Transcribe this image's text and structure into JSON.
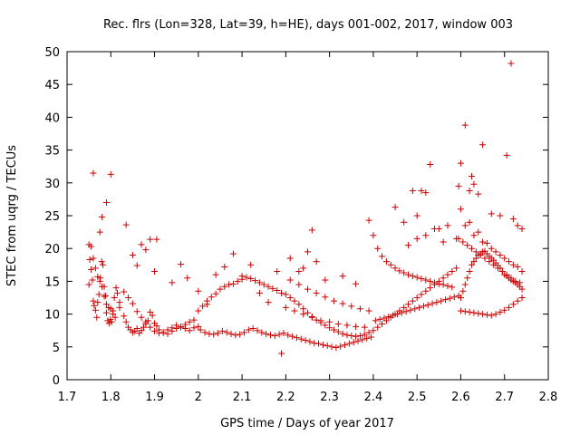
{
  "chart_data": {
    "type": "scatter",
    "title": "Rec. flrs (Lon=328, Lat=39, h=HE), days 001-002, 2017, window 003",
    "xlabel": "GPS time / Days of year 2017",
    "ylabel": "STEC from uqrg / TECUs",
    "xlim": [
      1.7,
      2.8
    ],
    "ylim": [
      0,
      50
    ],
    "xticks": [
      "1.7",
      "1.8",
      "1.9",
      "2",
      "2.1",
      "2.2",
      "2.3",
      "2.4",
      "2.5",
      "2.6",
      "2.7",
      "2.8"
    ],
    "yticks": [
      "0",
      "5",
      "10",
      "15",
      "20",
      "25",
      "30",
      "35",
      "40",
      "45",
      "50"
    ],
    "grid": false,
    "legend": "none",
    "marker": "plus",
    "color": "#cc0000",
    "series": [
      {
        "x": [
          1.75,
          1.752,
          1.755,
          1.758,
          1.76,
          1.762,
          1.765,
          1.768,
          1.77,
          1.773,
          1.776,
          1.779,
          1.782,
          1.785,
          1.788,
          1.79,
          1.793,
          1.796,
          1.799,
          1.802,
          1.805,
          1.808,
          1.812,
          1.815,
          1.82,
          1.83,
          1.835,
          1.84,
          1.845,
          1.85,
          1.855,
          1.86,
          1.865,
          1.87,
          1.875,
          1.88,
          1.885,
          1.89,
          1.895,
          1.9,
          1.905,
          1.91,
          1.92,
          1.93,
          1.94,
          1.95,
          1.96,
          1.97,
          1.98,
          1.99,
          1.75,
          1.755,
          1.76,
          1.765,
          1.77,
          1.775,
          1.78,
          1.785,
          1.79,
          1.795,
          1.8,
          1.805,
          1.81,
          1.82,
          1.83,
          1.84,
          1.85,
          1.86,
          1.87,
          1.88,
          1.89,
          1.9,
          1.91,
          1.92,
          1.93,
          1.94,
          1.95,
          1.96,
          1.97,
          1.98,
          1.99,
          2.0,
          1.76,
          1.8,
          1.78,
          1.79,
          1.775,
          1.85,
          1.87,
          1.89,
          1.905,
          1.835,
          1.86,
          1.88,
          1.9,
          1.96,
          1.94,
          1.975,
          2.0,
          2.01,
          2.02,
          2.03,
          2.04,
          2.05,
          2.06,
          2.07,
          2.08,
          2.09,
          2.1,
          2.11,
          2.12,
          2.13,
          2.14,
          2.15,
          2.16,
          2.17,
          2.18,
          2.19,
          2.005,
          2.015,
          2.025,
          2.035,
          2.045,
          2.055,
          2.065,
          2.075,
          2.085,
          2.095,
          2.105,
          2.115,
          2.125,
          2.135,
          2.145,
          2.155,
          2.165,
          2.175,
          2.185,
          2.195,
          2.0,
          2.02,
          2.04,
          2.06,
          2.08,
          2.1,
          2.12,
          2.14,
          2.16,
          2.18,
          2.2,
          2.21,
          2.22,
          2.23,
          2.24,
          2.25,
          2.26,
          2.27,
          2.28,
          2.29,
          2.3,
          2.31,
          2.32,
          2.33,
          2.34,
          2.35,
          2.36,
          2.37,
          2.38,
          2.39,
          2.205,
          2.215,
          2.225,
          2.235,
          2.245,
          2.255,
          2.265,
          2.275,
          2.285,
          2.295,
          2.305,
          2.315,
          2.325,
          2.335,
          2.345,
          2.355,
          2.365,
          2.375,
          2.385,
          2.395,
          2.2,
          2.22,
          2.24,
          2.26,
          2.28,
          2.3,
          2.32,
          2.34,
          2.36,
          2.38,
          2.21,
          2.23,
          2.25,
          2.27,
          2.29,
          2.31,
          2.33,
          2.35,
          2.37,
          2.39,
          2.19,
          2.23,
          2.26,
          2.21,
          2.25,
          2.29,
          2.33,
          2.36,
          2.24,
          2.27,
          2.4,
          2.41,
          2.42,
          2.43,
          2.44,
          2.45,
          2.46,
          2.47,
          2.48,
          2.49,
          2.5,
          2.51,
          2.52,
          2.53,
          2.54,
          2.55,
          2.56,
          2.57,
          2.58,
          2.59,
          2.405,
          2.415,
          2.425,
          2.435,
          2.445,
          2.455,
          2.465,
          2.475,
          2.485,
          2.495,
          2.505,
          2.515,
          2.525,
          2.535,
          2.545,
          2.555,
          2.565,
          2.575,
          2.585,
          2.595,
          2.39,
          2.4,
          2.41,
          2.42,
          2.43,
          2.44,
          2.45,
          2.46,
          2.47,
          2.48,
          2.49,
          2.5,
          2.51,
          2.52,
          2.53,
          2.54,
          2.55,
          2.56,
          2.57,
          2.58,
          2.45,
          2.47,
          2.49,
          2.5,
          2.51,
          2.52,
          2.53,
          2.55,
          2.57,
          2.59,
          2.48,
          2.5,
          2.52,
          2.54,
          2.56,
          2.6,
          2.605,
          2.61,
          2.615,
          2.62,
          2.625,
          2.63,
          2.635,
          2.64,
          2.645,
          2.65,
          2.655,
          2.66,
          2.665,
          2.67,
          2.675,
          2.68,
          2.685,
          2.69,
          2.695,
          2.7,
          2.705,
          2.71,
          2.715,
          2.72,
          2.725,
          2.73,
          2.735,
          2.74,
          2.6,
          2.61,
          2.62,
          2.63,
          2.64,
          2.65,
          2.66,
          2.67,
          2.68,
          2.69,
          2.7,
          2.71,
          2.72,
          2.73,
          2.74,
          2.595,
          2.605,
          2.615,
          2.625,
          2.635,
          2.645,
          2.655,
          2.665,
          2.675,
          2.685,
          2.695,
          2.705,
          2.715,
          2.725,
          2.735,
          2.6,
          2.62,
          2.64,
          2.66,
          2.68,
          2.7,
          2.72,
          2.74,
          2.61,
          2.63,
          2.65,
          2.67,
          2.69,
          2.71,
          2.73,
          2.595,
          2.61,
          2.625,
          2.64,
          2.65,
          2.705,
          2.715,
          2.74,
          2.6,
          2.62,
          2.63,
          2.67,
          2.69,
          2.72,
          2.73
        ],
        "y": [
          14.5,
          18.3,
          16.8,
          15.2,
          12.0,
          11.3,
          10.6,
          9.5,
          11.8,
          13.0,
          15.5,
          18.0,
          17.5,
          14.2,
          12.8,
          10.2,
          9.0,
          8.6,
          9.2,
          8.8,
          10.5,
          12.5,
          14.0,
          13.2,
          11.0,
          9.7,
          8.8,
          8.0,
          7.6,
          7.2,
          7.4,
          7.8,
          7.1,
          7.5,
          8.0,
          8.5,
          9.0,
          10.3,
          9.8,
          8.6,
          8.2,
          7.6,
          7.2,
          7.0,
          7.4,
          7.8,
          8.1,
          8.4,
          8.8,
          9.1,
          20.6,
          20.3,
          18.5,
          17.0,
          15.7,
          15.0,
          14.2,
          12.7,
          11.5,
          11.0,
          10.8,
          10.0,
          9.5,
          11.8,
          13.4,
          12.5,
          11.6,
          10.4,
          9.5,
          8.8,
          8.0,
          7.4,
          7.1,
          7.2,
          7.6,
          7.9,
          8.3,
          8.0,
          7.8,
          7.5,
          7.9,
          8.1,
          31.5,
          31.3,
          24.8,
          27.0,
          22.5,
          19.0,
          20.6,
          21.4,
          21.4,
          23.6,
          17.4,
          19.8,
          16.5,
          17.6,
          14.8,
          15.5,
          10.5,
          11.2,
          12.0,
          12.6,
          13.1,
          13.8,
          14.2,
          14.5,
          14.6,
          15.0,
          15.3,
          15.6,
          15.4,
          15.1,
          14.8,
          14.5,
          14.2,
          13.9,
          13.6,
          13.2,
          7.6,
          7.2,
          7.0,
          6.9,
          7.1,
          7.4,
          7.2,
          7.0,
          6.8,
          6.9,
          7.2,
          7.6,
          7.8,
          7.5,
          7.2,
          7.0,
          6.8,
          6.7,
          6.9,
          7.1,
          13.5,
          11.5,
          16.0,
          17.2,
          19.2,
          15.8,
          17.5,
          13.2,
          11.8,
          16.5,
          13.0,
          12.5,
          12.0,
          11.5,
          10.8,
          10.2,
          9.6,
          9.1,
          8.7,
          8.3,
          7.9,
          7.6,
          7.3,
          7.0,
          6.8,
          6.7,
          6.6,
          6.7,
          6.9,
          7.2,
          6.8,
          6.6,
          6.4,
          6.2,
          6.0,
          5.8,
          5.6,
          5.5,
          5.3,
          5.2,
          5.0,
          4.9,
          5.1,
          5.3,
          5.5,
          5.7,
          5.9,
          6.1,
          6.3,
          6.5,
          11.0,
          10.5,
          10.0,
          9.5,
          9.0,
          8.8,
          8.5,
          8.3,
          8.1,
          8.0,
          15.2,
          14.5,
          13.8,
          13.2,
          12.6,
          12.0,
          11.6,
          11.2,
          10.8,
          10.5,
          4.0,
          16.5,
          22.8,
          18.5,
          19.5,
          15.2,
          15.8,
          14.6,
          17.0,
          18.0,
          7.5,
          8.0,
          8.5,
          9.0,
          9.5,
          10.0,
          10.5,
          11.0,
          11.5,
          12.0,
          12.5,
          13.0,
          13.5,
          14.0,
          14.5,
          15.0,
          15.5,
          16.0,
          16.5,
          17.0,
          9.0,
          9.2,
          9.4,
          9.6,
          9.8,
          10.0,
          10.2,
          10.4,
          10.6,
          10.8,
          11.0,
          11.2,
          11.4,
          11.6,
          11.8,
          12.0,
          12.2,
          12.4,
          12.6,
          12.8,
          24.3,
          22.0,
          20.0,
          18.8,
          18.0,
          17.5,
          17.0,
          16.6,
          16.3,
          16.0,
          15.8,
          15.6,
          15.4,
          15.2,
          15.0,
          14.8,
          14.6,
          14.5,
          14.3,
          14.1,
          26.3,
          24.0,
          28.8,
          25.0,
          28.8,
          28.5,
          32.8,
          23.0,
          23.5,
          21.5,
          20.5,
          21.5,
          22.0,
          23.0,
          21.0,
          12.5,
          13.5,
          14.5,
          15.5,
          16.5,
          17.5,
          18.0,
          18.5,
          19.0,
          19.2,
          19.5,
          19.6,
          19.2,
          18.8,
          18.5,
          18.2,
          17.8,
          17.4,
          17.0,
          16.5,
          16.0,
          15.8,
          15.5,
          15.2,
          15.0,
          14.8,
          14.5,
          14.2,
          13.8,
          10.5,
          10.4,
          10.3,
          10.2,
          10.1,
          10.0,
          9.9,
          9.8,
          10.0,
          10.3,
          10.6,
          11.0,
          11.5,
          12.0,
          12.5,
          21.5,
          21.0,
          20.5,
          20.0,
          19.5,
          19.0,
          18.5,
          18.0,
          17.5,
          17.0,
          16.5,
          16.0,
          15.5,
          15.0,
          14.8,
          26.0,
          24.0,
          22.5,
          20.8,
          19.5,
          18.5,
          17.5,
          16.5,
          23.5,
          22.0,
          21.0,
          20.0,
          19.0,
          18.0,
          17.2,
          29.5,
          38.8,
          31.0,
          28.3,
          35.8,
          34.2,
          48.2,
          23.0,
          33.0,
          28.8,
          29.8,
          25.3,
          25.0,
          24.5,
          23.5
        ]
      }
    ]
  }
}
